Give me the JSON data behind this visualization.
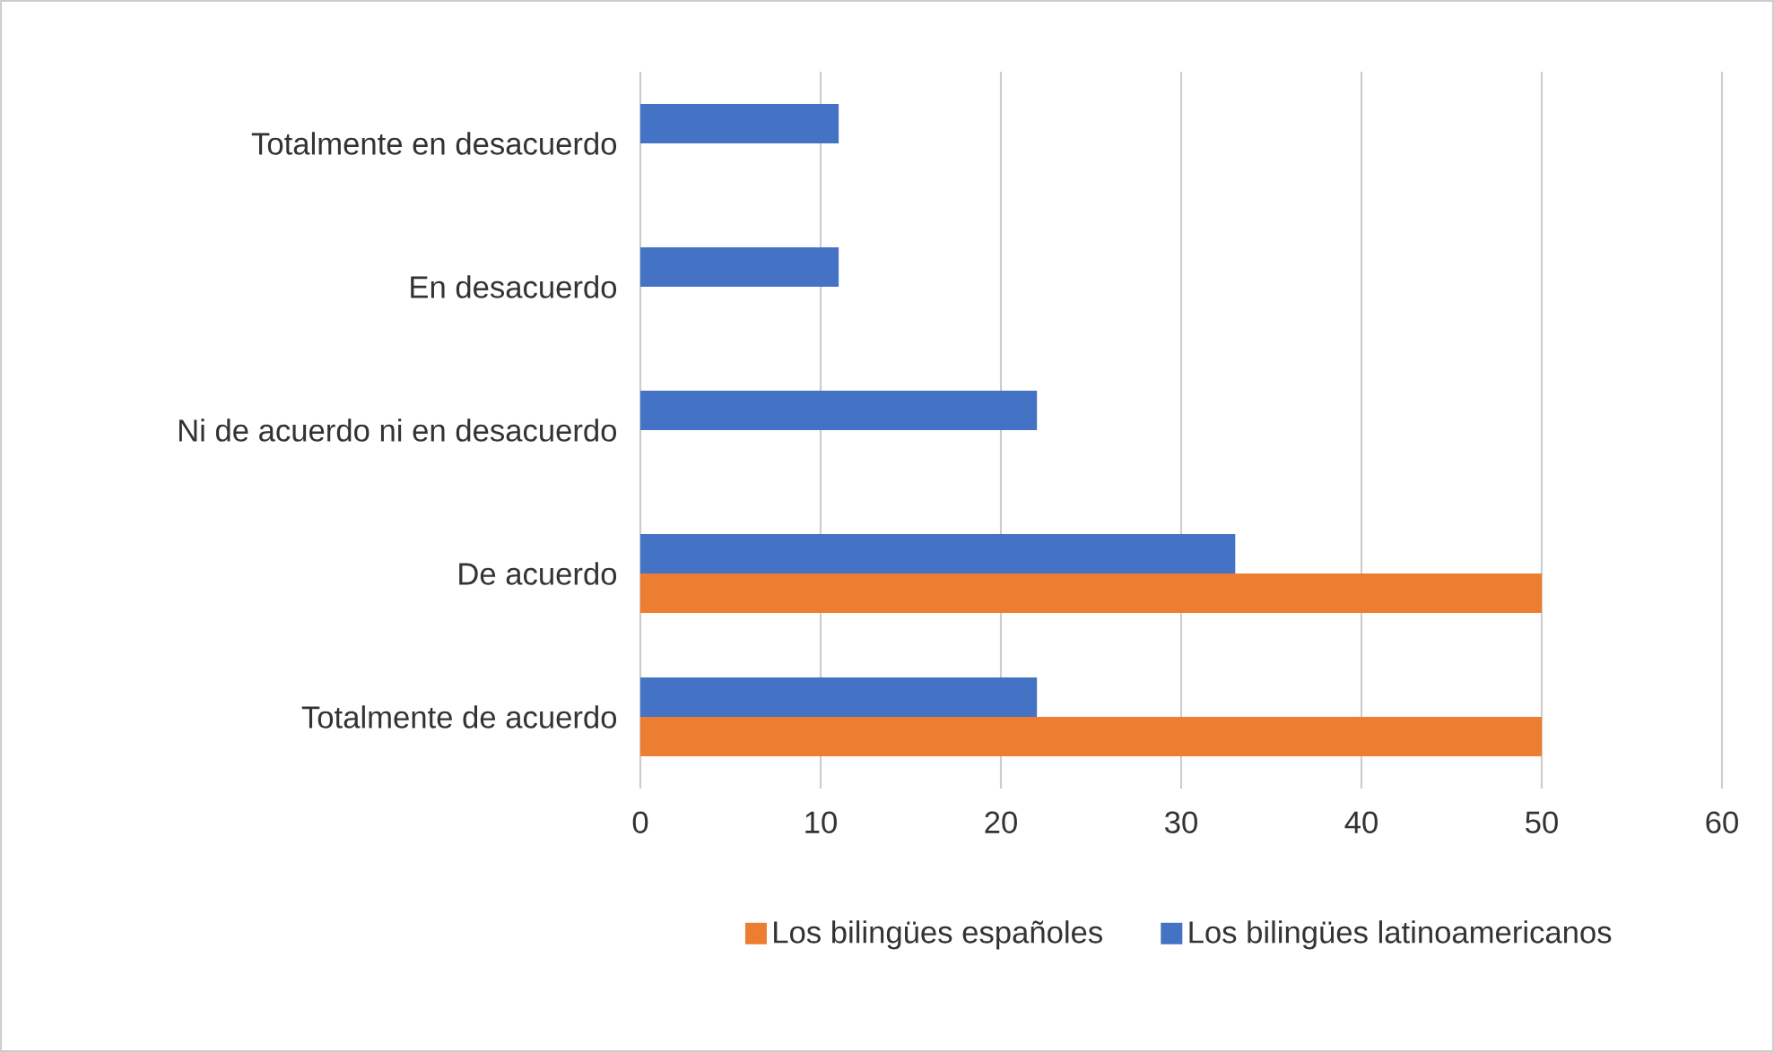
{
  "chart_data": {
    "type": "bar",
    "orientation": "horizontal",
    "categories": [
      "Totalmente en desacuerdo",
      "En desacuerdo",
      "Ni de acuerdo ni en desacuerdo",
      "De acuerdo",
      "Totalmente de acuerdo"
    ],
    "series": [
      {
        "name": "Los bilingües españoles",
        "color": "#ed7d31",
        "values": [
          0,
          0,
          0,
          50,
          50
        ]
      },
      {
        "name": "Los bilingües latinoamericanos",
        "color": "#4472c4",
        "values": [
          11,
          11,
          22,
          33,
          22
        ]
      }
    ],
    "xlim": [
      0,
      60
    ],
    "xticks": [
      0,
      10,
      20,
      30,
      40,
      50,
      60
    ],
    "grid": "x",
    "legend": "bottom"
  }
}
